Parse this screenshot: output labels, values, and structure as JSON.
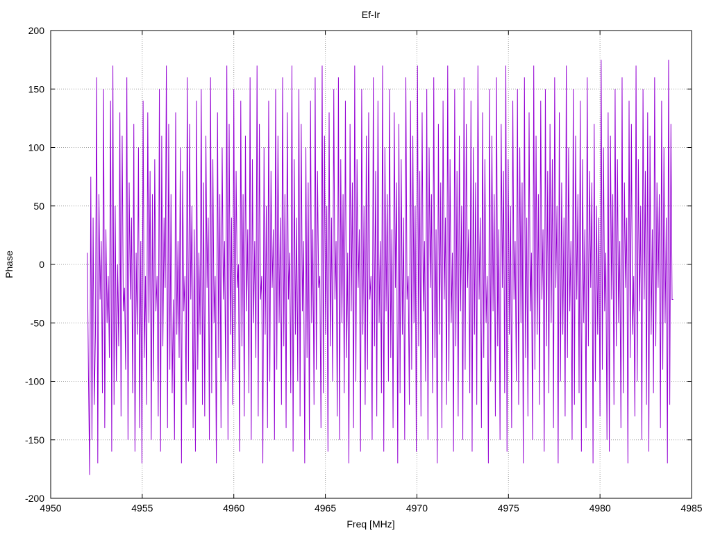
{
  "chart_data": {
    "type": "line",
    "title": "Ef-Ir",
    "xlabel": "Freq [MHz]",
    "ylabel": "Phase",
    "xlim": [
      4950,
      4985
    ],
    "ylim": [
      -200,
      200
    ],
    "xticks": [
      4950,
      4955,
      4960,
      4965,
      4970,
      4975,
      4980,
      4985
    ],
    "yticks": [
      -200,
      -150,
      -100,
      -50,
      0,
      50,
      100,
      150,
      200
    ],
    "x_tick_labels": [
      "4950",
      "4955",
      "4960",
      "4965",
      "4970",
      "4975",
      "4980",
      "4985"
    ],
    "y_tick_labels": [
      "-200",
      "-150",
      "-100",
      "-50",
      "0",
      "50",
      "100",
      "150",
      "200"
    ],
    "grid": true,
    "legend": "none",
    "line_color": "#9400d3",
    "series": [
      {
        "x_start": 4952.0,
        "x_end": 4984.0,
        "values": [
          10,
          -95,
          -180,
          75,
          -150,
          40,
          -120,
          -60,
          160,
          -170,
          60,
          -30,
          20,
          -110,
          150,
          -140,
          30,
          -50,
          -10,
          -80,
          140,
          -160,
          170,
          -120,
          50,
          -100,
          0,
          -70,
          130,
          -130,
          110,
          -40,
          -20,
          -90,
          160,
          -150,
          70,
          -30,
          40,
          -110,
          120,
          -160,
          10,
          -60,
          100,
          -140,
          20,
          -170,
          140,
          -80,
          -10,
          -120,
          130,
          -50,
          80,
          -150,
          60,
          -100,
          90,
          -40,
          -10,
          -130,
          150,
          -160,
          110,
          -70,
          40,
          -20,
          170,
          -140,
          120,
          -90,
          60,
          -110,
          -30,
          -150,
          130,
          -60,
          20,
          -80,
          100,
          -170,
          80,
          -40,
          -10,
          -120,
          160,
          -100,
          120,
          -30,
          50,
          -140,
          30,
          -160,
          140,
          -90,
          10,
          -60,
          150,
          -120,
          70,
          -130,
          110,
          -20,
          40,
          -150,
          160,
          -110,
          90,
          -50,
          -10,
          -170,
          130,
          -80,
          60,
          -140,
          100,
          -30,
          20,
          -100,
          170,
          -150,
          120,
          -60,
          40,
          -120,
          150,
          -90,
          80,
          -20,
          0,
          -160,
          140,
          -70,
          60,
          -130,
          110,
          -40,
          30,
          -110,
          160,
          -150,
          90,
          -50,
          20,
          -80,
          170,
          -130,
          120,
          -30,
          -10,
          -170,
          100,
          -60,
          50,
          -140,
          140,
          -100,
          80,
          -20,
          30,
          -150,
          150,
          -90,
          110,
          -50,
          40,
          -120,
          160,
          -70,
          60,
          -140,
          130,
          -30,
          10,
          -110,
          170,
          -160,
          90,
          -60,
          40,
          -100,
          150,
          -130,
          120,
          -40,
          20,
          -170,
          100,
          -80,
          70,
          -150,
          140,
          -50,
          30,
          -120,
          160,
          -90,
          80,
          -20,
          -10,
          -140,
          170,
          -110,
          110,
          -60,
          50,
          -160,
          130,
          -70,
          40,
          -100,
          150,
          -30,
          20,
          -130,
          160,
          -150,
          90,
          -50,
          60,
          -110,
          140,
          -80,
          10,
          -170,
          120,
          -40,
          70,
          -140,
          170,
          -100,
          90,
          -20,
          30,
          -160,
          150,
          -60,
          50,
          -120,
          110,
          -90,
          130,
          -30,
          -10,
          -150,
          160,
          -70,
          80,
          -130,
          140,
          -50,
          20,
          -110,
          170,
          -160,
          100,
          -40,
          60,
          -100,
          150,
          -80,
          30,
          -140,
          130,
          -20,
          70,
          -170,
          120,
          -110,
          90,
          -60,
          40,
          -150,
          160,
          -30,
          -10,
          -120,
          140,
          -90,
          110,
          -50,
          50,
          -160,
          170,
          -70,
          80,
          -130,
          130,
          -40,
          20,
          -100,
          150,
          -150,
          100,
          -20,
          60,
          -110,
          160,
          -80,
          30,
          -170,
          120,
          -60,
          70,
          -140,
          140,
          -30,
          40,
          -120,
          170,
          -100,
          90,
          -50,
          10,
          -160,
          150,
          -70,
          80,
          -130,
          110,
          -40,
          50,
          -150,
          160,
          -90,
          120,
          -20,
          30,
          -110,
          140,
          -160,
          100,
          -60,
          70,
          -120,
          170,
          -30,
          40,
          -140,
          130,
          -80,
          90,
          -50,
          -10,
          -170,
          150,
          -100,
          110,
          -40,
          60,
          -130,
          160,
          -70,
          30,
          -150,
          120,
          -20,
          80,
          -110,
          170,
          -160,
          90,
          -60,
          50,
          -140,
          140,
          -30,
          20,
          -100,
          150,
          -120,
          100,
          -50,
          70,
          -170,
          160,
          -80,
          40,
          -130,
          130,
          -40,
          10,
          -150,
          170,
          -90,
          110,
          -60,
          60,
          -120,
          140,
          -30,
          30,
          -160,
          150,
          -70,
          80,
          -110,
          120,
          -50,
          90,
          -140,
          160,
          -20,
          50,
          -170,
          130,
          -100,
          70,
          -60,
          40,
          -130,
          170,
          -80,
          100,
          -40,
          20,
          -150,
          150,
          -120,
          110,
          -30,
          60,
          -110,
          140,
          -160,
          90,
          -50,
          30,
          -140,
          160,
          -70,
          80,
          -20,
          70,
          -170,
          120,
          -100,
          50,
          -60,
          40,
          -130,
          175,
          -90,
          100,
          -40,
          10,
          -150,
          130,
          -160,
          110,
          -30,
          60,
          -120,
          150,
          -70,
          90,
          -50,
          20,
          -140,
          160,
          -110,
          70,
          -20,
          40,
          -170,
          140,
          -80,
          120,
          -60,
          -10,
          -130,
          170,
          -100,
          90,
          -40,
          50,
          -150,
          150,
          -30,
          80,
          -120,
          130,
          -160,
          110,
          -60,
          30,
          -110,
          160,
          -70,
          70,
          -20,
          60,
          -140,
          140,
          -90,
          100,
          -50,
          40,
          -170,
          175,
          -120,
          120,
          -30,
          -30
        ]
      }
    ]
  }
}
